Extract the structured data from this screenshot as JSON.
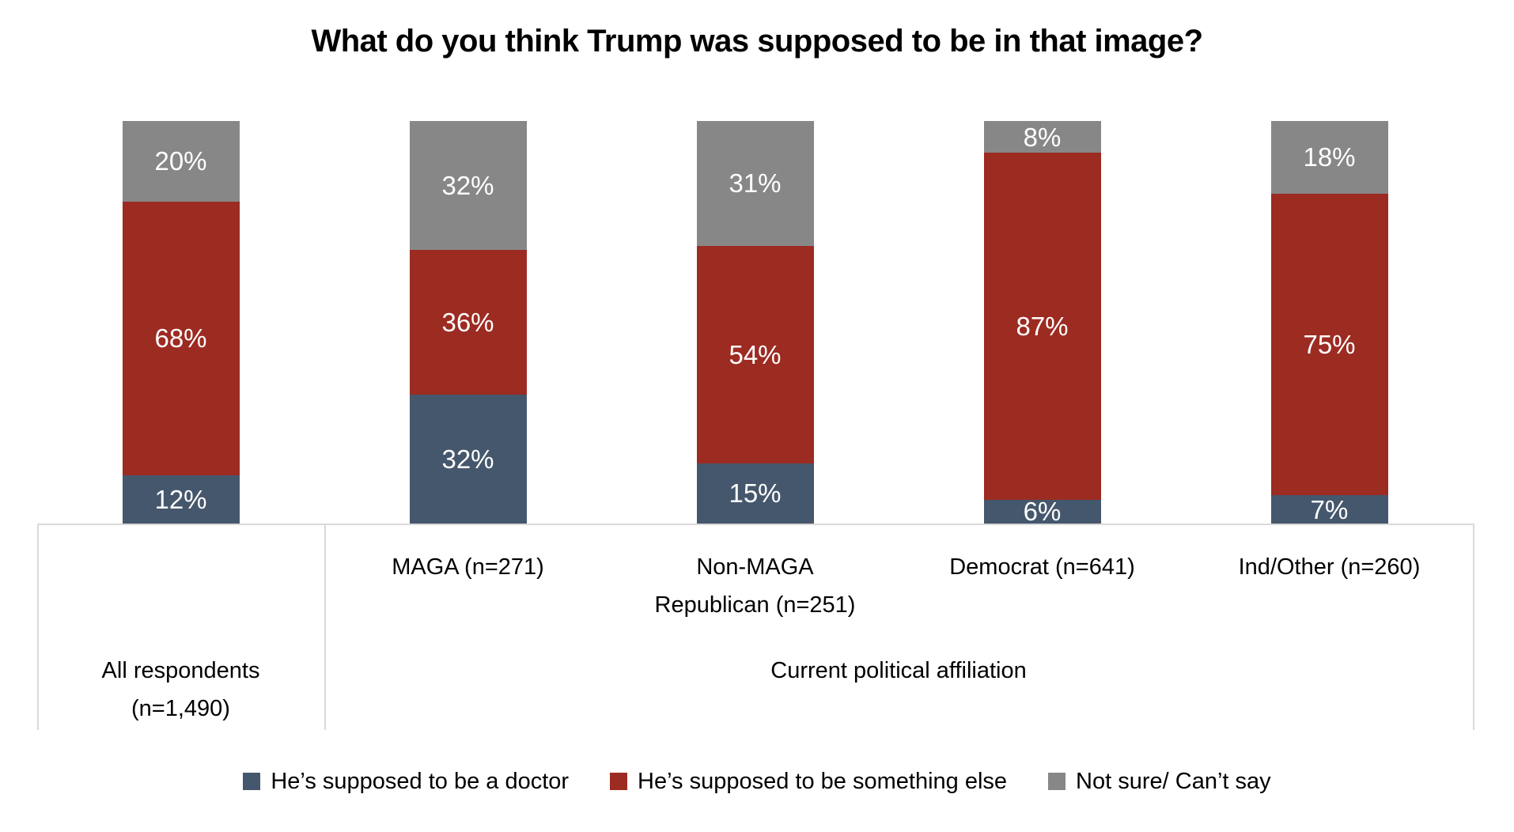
{
  "title": "What do you think Trump was supposed to be in that image?",
  "chart_data": {
    "type": "bar",
    "variant": "100-percent-stacked-column",
    "title": "What do you think Trump was supposed to be in that image?",
    "categories": [
      "All respondents (n=1,490)",
      "MAGA (n=271)",
      "Non-MAGA Republican (n=251)",
      "Democrat (n=641)",
      "Ind/Other (n=260)"
    ],
    "series": [
      {
        "name": "He’s supposed to be a doctor",
        "color": "#45576C",
        "values": [
          12,
          32,
          15,
          6,
          7
        ]
      },
      {
        "name": "He’s supposed to be something else",
        "color": "#9C2B22",
        "values": [
          68,
          36,
          54,
          87,
          75
        ]
      },
      {
        "name": "Not sure/ Can’t say",
        "color": "#878787",
        "values": [
          20,
          32,
          31,
          8,
          18
        ]
      }
    ],
    "value_suffix": "%",
    "ylim": [
      0,
      100
    ],
    "grid": false,
    "legend_position": "bottom",
    "data_label_color": "#FFFFFF",
    "axis_line_color": "#D9D9D9",
    "axis": {
      "top_row": [
        "",
        "MAGA (n=271)",
        "Non-MAGA\nRepublican (n=251)",
        "Democrat (n=641)",
        "Ind/Other (n=260)"
      ],
      "bottom_row": [
        {
          "label": "All respondents\n(n=1,490)",
          "span": 1
        },
        {
          "label": "Current political affiliation",
          "span": 4
        }
      ]
    }
  }
}
